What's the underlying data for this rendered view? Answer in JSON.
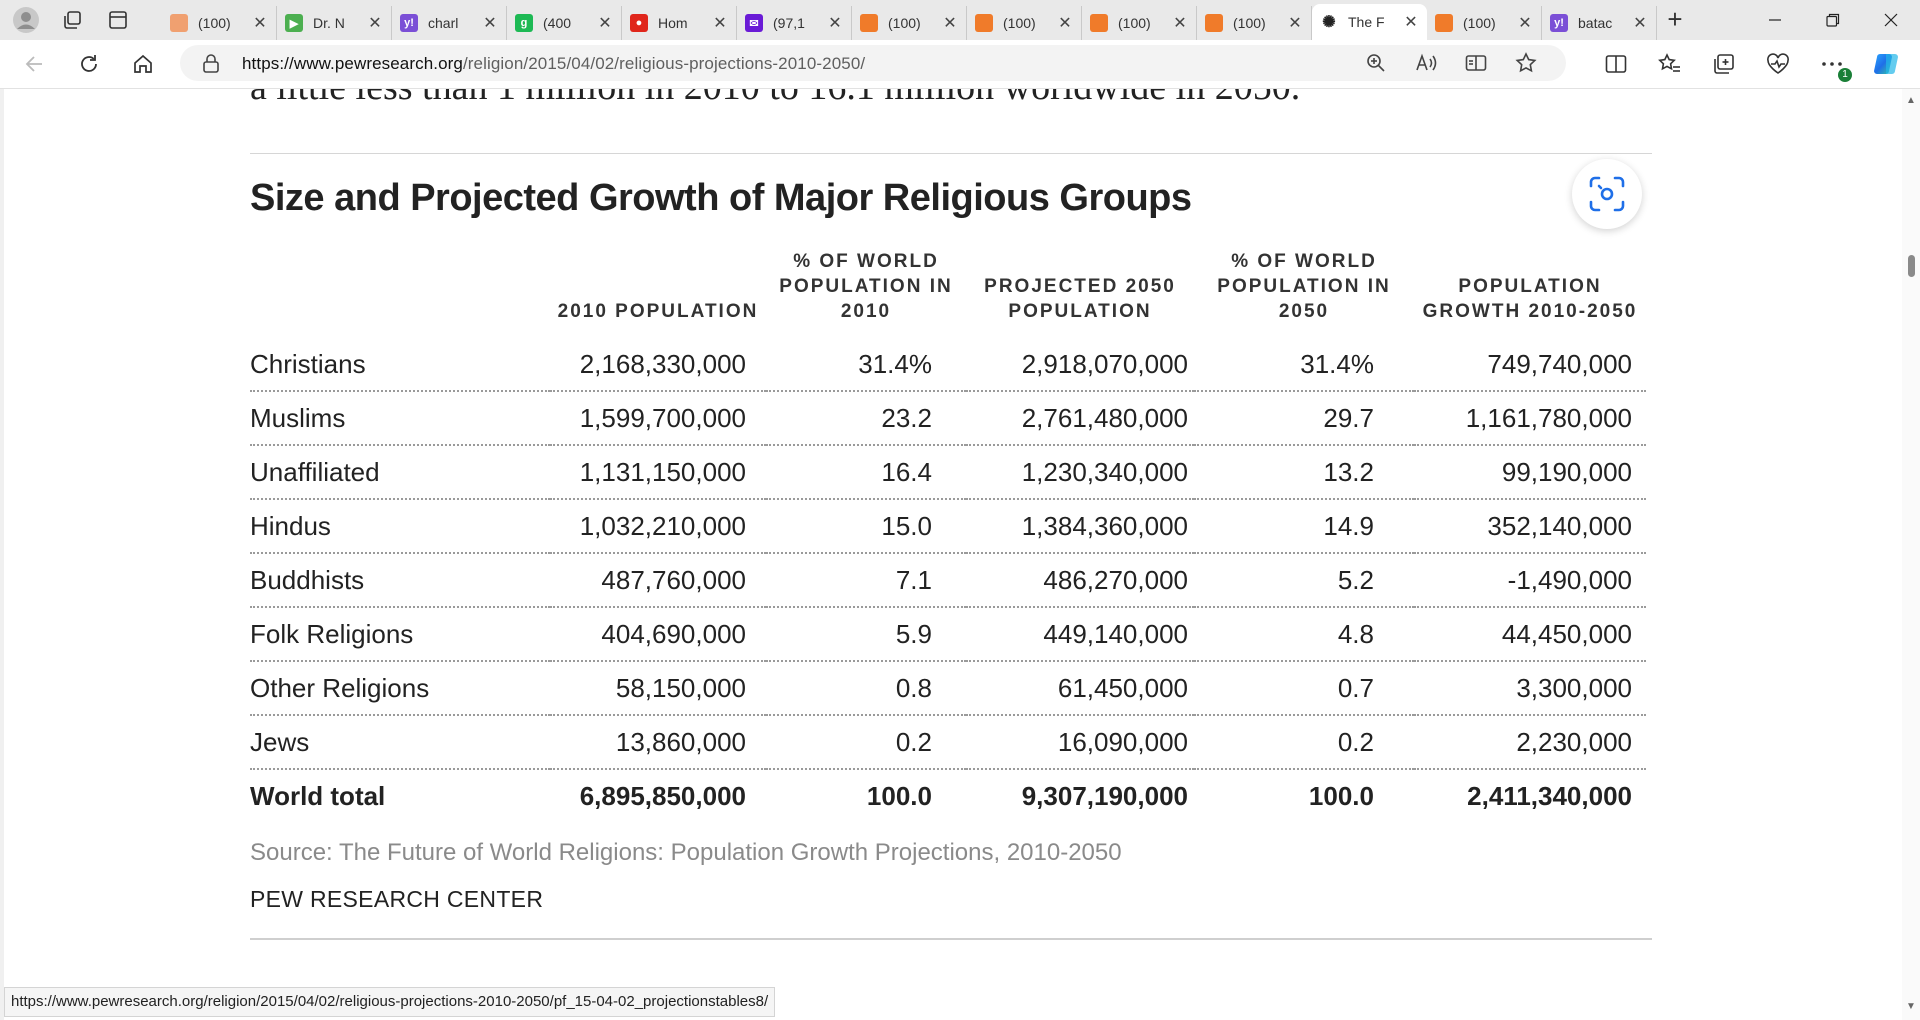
{
  "browser": {
    "tabs": [
      {
        "label": "(100)",
        "favicon_color": "#f0a070",
        "favicon_glyph": ""
      },
      {
        "label": "Dr. N",
        "favicon_color": "#4caf50",
        "favicon_glyph": "▶"
      },
      {
        "label": "charl",
        "favicon_color": "#7b4fd6",
        "favicon_glyph": "y!"
      },
      {
        "label": "(400",
        "favicon_color": "#1db954",
        "favicon_glyph": "g"
      },
      {
        "label": "Hom",
        "favicon_color": "#e0261b",
        "favicon_glyph": "●"
      },
      {
        "label": "(97,1",
        "favicon_color": "#6a1bd6",
        "favicon_glyph": "✉"
      },
      {
        "label": "(100)",
        "favicon_color": "#f07b2a",
        "favicon_glyph": ""
      },
      {
        "label": "(100)",
        "favicon_color": "#f07b2a",
        "favicon_glyph": ""
      },
      {
        "label": "(100)",
        "favicon_color": "#f07b2a",
        "favicon_glyph": ""
      },
      {
        "label": "(100)",
        "favicon_color": "#f07b2a",
        "favicon_glyph": ""
      },
      {
        "label": "The F",
        "favicon_color": "#222222",
        "favicon_glyph": "✺",
        "active": true
      },
      {
        "label": "(100)",
        "favicon_color": "#f07b2a",
        "favicon_glyph": ""
      },
      {
        "label": "batac",
        "favicon_color": "#7b4fd6",
        "favicon_glyph": "y!"
      }
    ],
    "url_domain": "https://www.pewresearch.org",
    "url_path": "/religion/2015/04/02/religious-projections-2010-2050/",
    "status_url": "https://www.pewresearch.org/religion/2015/04/02/religious-projections-2010-2050/pf_15-04-02_projectionstables8/",
    "notification_count": "1"
  },
  "article": {
    "cut_text": "a little less than 1 million in 2010 to 16.1 million worldwide in 2050."
  },
  "figure": {
    "title": "Size and Projected Growth of Major Religious Groups",
    "columns": [
      "",
      "2010 POPULATION",
      "% OF WORLD POPULATION IN 2010",
      "PROJECTED 2050 POPULATION",
      "% OF WORLD POPULATION IN 2050",
      "POPULATION GROWTH 2010-2050"
    ],
    "rows": [
      [
        "Christians",
        "2,168,330,000",
        "31.4%",
        "2,918,070,000",
        "31.4%",
        "749,740,000"
      ],
      [
        "Muslims",
        "1,599,700,000",
        "23.2",
        "2,761,480,000",
        "29.7",
        "1,161,780,000"
      ],
      [
        "Unaffiliated",
        "1,131,150,000",
        "16.4",
        "1,230,340,000",
        "13.2",
        "99,190,000"
      ],
      [
        "Hindus",
        "1,032,210,000",
        "15.0",
        "1,384,360,000",
        "14.9",
        "352,140,000"
      ],
      [
        "Buddhists",
        "487,760,000",
        "7.1",
        "486,270,000",
        "5.2",
        "-1,490,000"
      ],
      [
        "Folk Religions",
        "404,690,000",
        "5.9",
        "449,140,000",
        "4.8",
        "44,450,000"
      ],
      [
        "Other Religions",
        "58,150,000",
        "0.8",
        "61,450,000",
        "0.7",
        "3,300,000"
      ],
      [
        "Jews",
        "13,860,000",
        "0.2",
        "16,090,000",
        "0.2",
        "2,230,000"
      ]
    ],
    "total": [
      "World total",
      "6,895,850,000",
      "100.0",
      "9,307,190,000",
      "100.0",
      "2,411,340,000"
    ],
    "source": "Source: The Future of World Religions: Population Growth Projections, 2010-2050",
    "brand": "PEW RESEARCH CENTER"
  }
}
